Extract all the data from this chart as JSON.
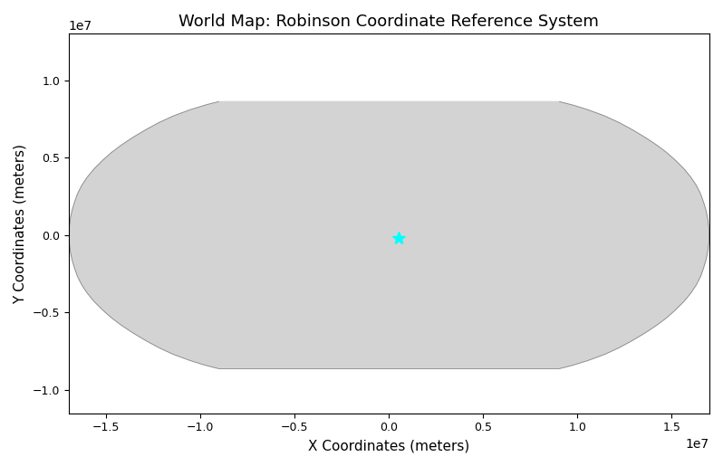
{
  "title": "World Map: Robinson Coordinate Reference System",
  "xlabel": "X Coordinates (meters)",
  "ylabel": "Y Coordinates (meters)",
  "xlim": [
    -17000000,
    17000000
  ],
  "ylim": [
    -11500000,
    13000000
  ],
  "background_color": "white",
  "land_color": "black",
  "water_color": "white",
  "graticule_color": "#aaaaaa",
  "graticule_linewidth": 0.8,
  "star_x": 500000,
  "star_y": -200000,
  "star_color": "cyan",
  "star_size": 80,
  "title_fontsize": 13,
  "label_fontsize": 11,
  "tick_fontsize": 9,
  "robinson_semimajor": 6370997,
  "graticule_lon_step": 30,
  "graticule_lat_step": 30
}
